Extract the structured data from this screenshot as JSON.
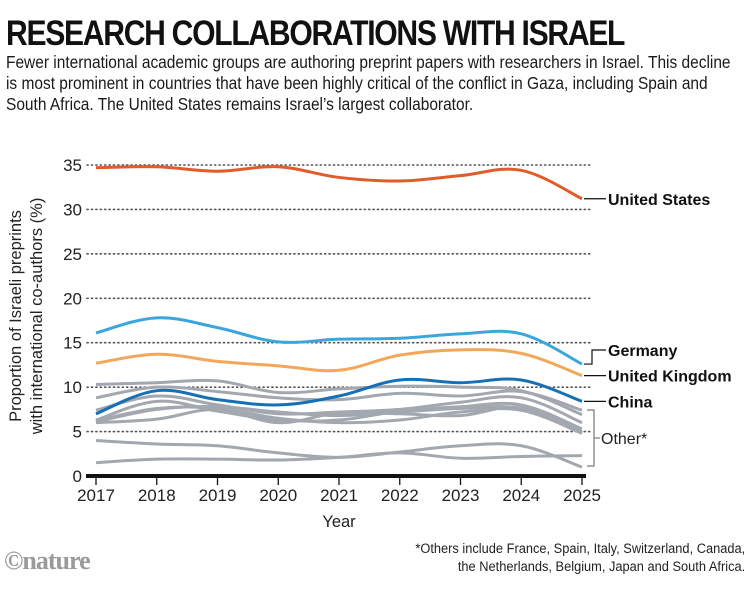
{
  "header": {
    "title": "RESEARCH COLLABORATIONS WITH ISRAEL",
    "subtitle": "Fewer international academic groups are authoring preprint papers with researchers in Israel. This decline is most prominent in countries that have been highly critical of the conflict in Gaza, including Spain and South Africa. The United States remains Israel’s largest collaborator."
  },
  "footer": {
    "footnote_line1": "*Others include France, Spain, Italy, Switzerland, Canada,",
    "footnote_line2": "the Netherlands, Belgium, Japan and South Africa.",
    "logo": "©nature"
  },
  "chart_data": {
    "type": "line",
    "title": "RESEARCH COLLABORATIONS WITH ISRAEL",
    "xlabel": "Year",
    "ylabel_line1": "Proportion of Israeli preprints",
    "ylabel_line2": "with international co-authors (%)",
    "ylim": [
      0,
      35
    ],
    "yticks": [
      0,
      5,
      10,
      15,
      20,
      25,
      30,
      35
    ],
    "x": [
      2017,
      2018,
      2019,
      2020,
      2021,
      2022,
      2023,
      2024,
      2025
    ],
    "grid": "horizontal dotted",
    "series": [
      {
        "name": "United States",
        "color": "#e05c2a",
        "highlight": true,
        "values": [
          34.7,
          34.8,
          34.3,
          34.8,
          33.6,
          33.2,
          33.8,
          34.4,
          31.2
        ]
      },
      {
        "name": "Germany",
        "color": "#3aa6dc",
        "highlight": true,
        "values": [
          16.1,
          17.8,
          16.7,
          15.1,
          15.4,
          15.5,
          16.0,
          16.0,
          12.6
        ]
      },
      {
        "name": "United Kingdom",
        "color": "#f2a75a",
        "highlight": true,
        "values": [
          12.7,
          13.7,
          12.9,
          12.4,
          11.9,
          13.6,
          14.2,
          13.8,
          11.3
        ]
      },
      {
        "name": "China",
        "color": "#1770b3",
        "highlight": true,
        "values": [
          7.0,
          9.6,
          8.6,
          8.0,
          9.0,
          10.8,
          10.5,
          10.8,
          8.4
        ]
      },
      {
        "name": "Other 1",
        "color": "#a3a8b0",
        "group": "Other*",
        "values": [
          10.3,
          10.5,
          10.7,
          9.4,
          9.8,
          10.1,
          10.0,
          9.6,
          6.9
        ]
      },
      {
        "name": "Other 2",
        "color": "#a3a8b0",
        "group": "Other*",
        "values": [
          8.8,
          10.0,
          9.5,
          8.8,
          8.6,
          9.3,
          9.0,
          9.5,
          7.4
        ]
      },
      {
        "name": "Other 3",
        "color": "#a3a8b0",
        "group": "Other*",
        "values": [
          7.4,
          9.0,
          8.0,
          7.0,
          7.2,
          7.5,
          8.3,
          8.8,
          6.0
        ]
      },
      {
        "name": "Other 4",
        "color": "#a3a8b0",
        "group": "Other*",
        "values": [
          6.3,
          8.4,
          7.3,
          6.3,
          6.3,
          7.3,
          7.8,
          8.0,
          5.3
        ]
      },
      {
        "name": "Other 5",
        "color": "#a3a8b0",
        "group": "Other*",
        "values": [
          6.1,
          7.5,
          7.8,
          7.2,
          6.8,
          7.2,
          7.6,
          7.6,
          5.0
        ]
      },
      {
        "name": "Other 6",
        "color": "#a3a8b0",
        "group": "Other*",
        "values": [
          6.0,
          6.4,
          7.5,
          6.0,
          7.1,
          7.0,
          6.8,
          7.7,
          4.9
        ]
      },
      {
        "name": "Other 7",
        "color": "#a3a8b0",
        "group": "Other*",
        "values": [
          6.2,
          7.6,
          7.6,
          6.5,
          6.0,
          6.3,
          7.2,
          7.4,
          4.8
        ]
      },
      {
        "name": "Other 8",
        "color": "#a3a8b0",
        "group": "Other*",
        "values": [
          4.0,
          3.6,
          3.4,
          2.6,
          2.1,
          2.7,
          3.4,
          3.4,
          1.0
        ]
      },
      {
        "name": "Other 9",
        "color": "#a3a8b0",
        "group": "Other*",
        "values": [
          1.5,
          1.9,
          1.9,
          1.8,
          2.1,
          2.6,
          2.0,
          2.2,
          2.3
        ]
      }
    ],
    "labels": [
      {
        "text": "United States",
        "bold": true
      },
      {
        "text": "Germany",
        "bold": true
      },
      {
        "text": "United Kingdom",
        "bold": true
      },
      {
        "text": "China",
        "bold": true
      },
      {
        "text": "Other*",
        "bold": false
      }
    ]
  }
}
